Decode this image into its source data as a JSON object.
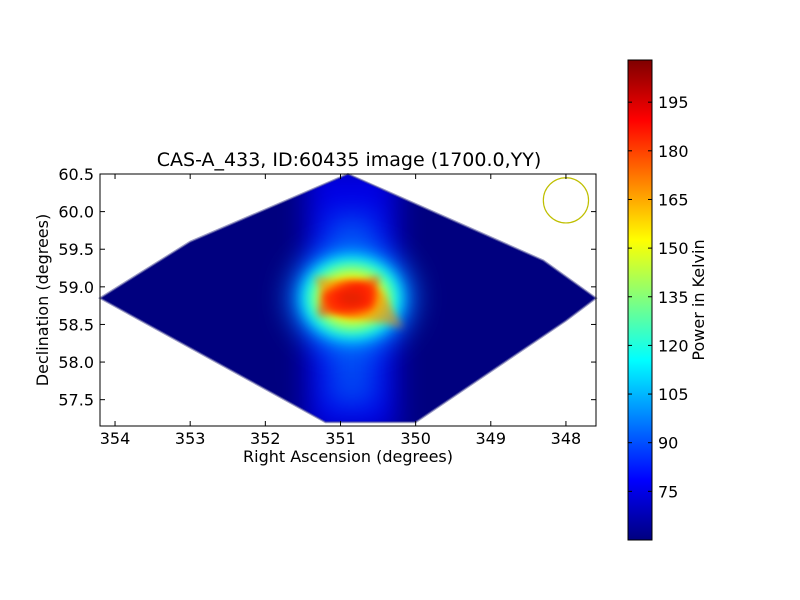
{
  "chart_data": {
    "type": "heatmap",
    "title": "CAS-A_433, ID:60435 image (1700.0,YY)",
    "xlabel": "Right Ascension (degrees)",
    "ylabel": "Declination (degrees)",
    "xlim": [
      354.2,
      347.6
    ],
    "ylim": [
      57.15,
      60.5
    ],
    "x_ticks": [
      354,
      353,
      352,
      351,
      350,
      349,
      348
    ],
    "x_tick_labels": [
      "354",
      "353",
      "352",
      "351",
      "350",
      "349",
      "348"
    ],
    "y_ticks": [
      57.5,
      58.0,
      58.5,
      59.0,
      59.5,
      60.0,
      60.5
    ],
    "y_tick_labels": [
      "57.5",
      "58.0",
      "58.5",
      "59.0",
      "59.5",
      "60.0",
      "60.5"
    ],
    "map_footprint": [
      [
        350.9,
        60.5
      ],
      [
        348.3,
        59.35
      ],
      [
        347.6,
        58.85
      ],
      [
        348.0,
        58.55
      ],
      [
        350.0,
        57.2
      ],
      [
        351.2,
        57.2
      ],
      [
        354.2,
        58.85
      ],
      [
        353.0,
        59.6
      ]
    ],
    "peak": {
      "ra": 350.85,
      "dec": 58.85,
      "value": 205
    },
    "beam_marker": {
      "ra": 348.0,
      "dec": 60.15,
      "radius_deg": 0.3,
      "color": "#bfbf00"
    },
    "grid": false,
    "colorbar": {
      "label": "Power in Kelvin",
      "min": 60,
      "max": 208,
      "ticks": [
        75,
        90,
        105,
        120,
        135,
        150,
        165,
        180,
        195
      ],
      "tick_labels": [
        "75",
        "90",
        "105",
        "120",
        "135",
        "150",
        "165",
        "180",
        "195"
      ],
      "colormap": "jet",
      "stops": [
        "#00007f",
        "#0000ff",
        "#007fff",
        "#00ffff",
        "#7fff7f",
        "#ffff00",
        "#ff7f00",
        "#ff0000",
        "#7f0000"
      ]
    }
  }
}
